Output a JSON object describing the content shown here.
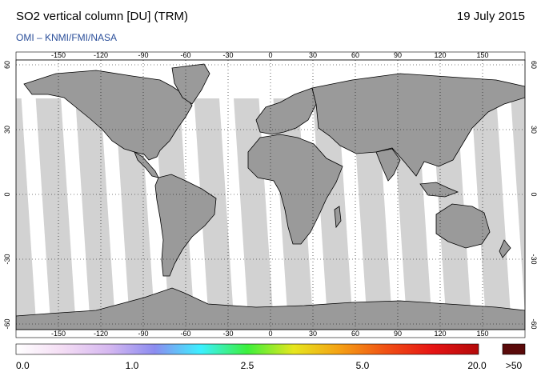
{
  "header": {
    "title": "SO2 vertical column [DU] (TRM)",
    "date": "19 July 2015",
    "credit": "OMI  –  KNMI/FMI/NASA"
  },
  "map": {
    "lon_ticks": [
      "-150",
      "-120",
      "-90",
      "-60",
      "-30",
      "0",
      "30",
      "60",
      "90",
      "120",
      "150"
    ],
    "lat_ticks": [
      "60",
      "30",
      "0",
      "-30",
      "-60"
    ],
    "ocean_color": "#ffffff",
    "land_gray": "#8f8f8f",
    "nodata_gray": "#d2d2d2"
  },
  "colorbar": {
    "labels": [
      "0.0",
      "1.0",
      "2.5",
      "5.0",
      "20.0",
      ">50"
    ],
    "overflow_color": "#5a0a0a",
    "stops": [
      "#ffffff",
      "#f4ddf4",
      "#d6b8f0",
      "#8c8cf0",
      "#3cf0ff",
      "#3cf03c",
      "#e6e61e",
      "#f5a014",
      "#f05014",
      "#e61414",
      "#b40a0a"
    ]
  }
}
